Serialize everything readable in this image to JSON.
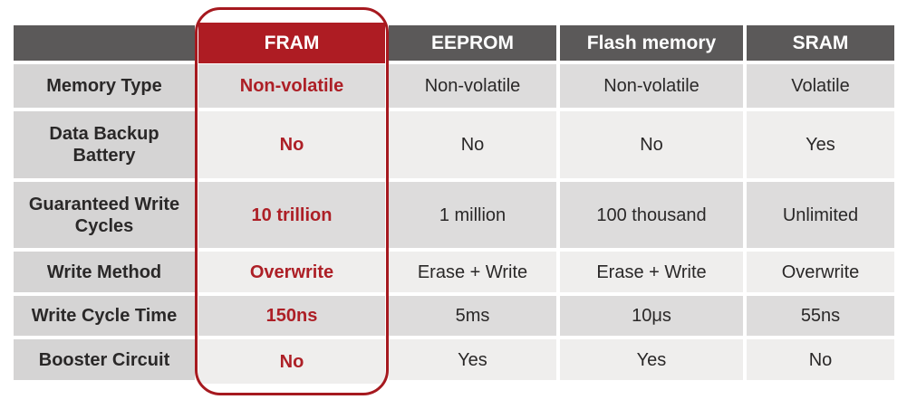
{
  "colors": {
    "header_bg": "#5b5959",
    "fram_header_bg": "#ae1c23",
    "accent_red": "#ad1f26",
    "highlight_border": "#a6191f",
    "label_bg": "#d5d4d4",
    "row_dark": "#dddcdc",
    "row_light": "#efeeed",
    "text_dark": "#2a2828",
    "white": "#ffffff"
  },
  "chart_data": {
    "type": "table",
    "columns": [
      "",
      "FRAM",
      "EEPROM",
      "Flash memory",
      "SRAM"
    ],
    "highlighted_column": "FRAM",
    "highlight_style": "red header cell and red rounded-rectangle outline around full column; FRAM values in bold red",
    "rows": [
      {
        "label": "Memory Type",
        "values": [
          "Non-volatile",
          "Non-volatile",
          "Non-volatile",
          "Volatile"
        ]
      },
      {
        "label": "Data Backup Battery",
        "values": [
          "No",
          "No",
          "No",
          "Yes"
        ]
      },
      {
        "label": "Guaranteed Write Cycles",
        "values": [
          "10 trillion",
          "1 million",
          "100 thousand",
          "Unlimited"
        ]
      },
      {
        "label": "Write Method",
        "values": [
          "Overwrite",
          "Erase + Write",
          "Erase + Write",
          "Overwrite"
        ]
      },
      {
        "label": "Write Cycle Time",
        "values": [
          "150ns",
          "5ms",
          "10μs",
          "55ns"
        ]
      },
      {
        "label": "Booster Circuit",
        "values": [
          "No",
          "Yes",
          "Yes",
          "No"
        ]
      }
    ],
    "layout": {
      "grid": "off",
      "row_striping": "alternating light/dark gray",
      "header_position": "top"
    }
  }
}
